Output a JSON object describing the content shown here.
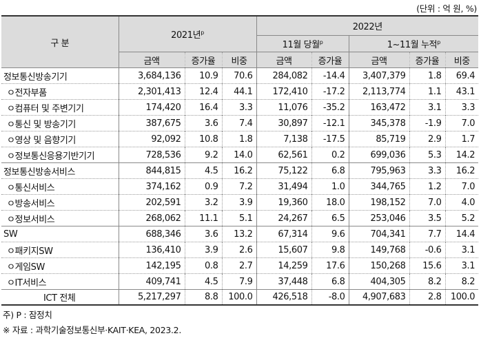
{
  "unit": "(단위 : 억 원, %)",
  "header": {
    "category": "구    분",
    "y2021": "2021년",
    "y2021_sup": "p",
    "y2022": "2022년",
    "nov": "11월 당월",
    "nov_sup": "p",
    "cum": "1~11월 누적",
    "cum_sup": "p",
    "amount": "금액",
    "growth": "증가율",
    "share": "비중"
  },
  "rows": [
    {
      "label": "정보통신방송기기",
      "v": [
        "3,684,136",
        "10.9",
        "70.6",
        "284,082",
        "-14.4",
        "3,407,379",
        "1.8",
        "69.4"
      ]
    },
    {
      "label": "ㅇ전자부품",
      "v": [
        "2,301,413",
        "12.4",
        "44.1",
        "172,410",
        "-17.2",
        "2,113,774",
        "1.1",
        "43.1"
      ]
    },
    {
      "label": "ㅇ컴퓨터 및 주변기기",
      "v": [
        "174,420",
        "16.4",
        "3.3",
        "11,076",
        "-35.2",
        "163,472",
        "3.1",
        "3.3"
      ]
    },
    {
      "label": "ㅇ통신 및 방송기기",
      "v": [
        "387,675",
        "3.6",
        "7.4",
        "30,897",
        "-12.1",
        "345,378",
        "-1.9",
        "7.0"
      ]
    },
    {
      "label": "ㅇ영상 및 음향기기",
      "v": [
        "92,092",
        "10.8",
        "1.8",
        "7,138",
        "-17.5",
        "85,719",
        "2.9",
        "1.7"
      ]
    },
    {
      "label": "ㅇ정보통신응용기반기기",
      "v": [
        "728,536",
        "9.2",
        "14.0",
        "62,561",
        "0.2",
        "699,036",
        "5.3",
        "14.2"
      ]
    },
    {
      "label": "정보통신방송서비스",
      "v": [
        "844,815",
        "4.5",
        "16.2",
        "75,122",
        "6.8",
        "795,963",
        "3.3",
        "16.2"
      ]
    },
    {
      "label": "ㅇ통신서비스",
      "v": [
        "374,162",
        "0.9",
        "7.2",
        "31,494",
        "1.0",
        "344,765",
        "1.2",
        "7.0"
      ]
    },
    {
      "label": "ㅇ방송서비스",
      "v": [
        "202,591",
        "3.2",
        "3.9",
        "19,360",
        "18.0",
        "198,152",
        "7.0",
        "4.0"
      ]
    },
    {
      "label": "ㅇ정보서비스",
      "v": [
        "268,062",
        "11.1",
        "5.1",
        "24,267",
        "6.5",
        "253,046",
        "3.5",
        "5.2"
      ]
    },
    {
      "label": "SW",
      "v": [
        "688,346",
        "3.6",
        "13.2",
        "67,314",
        "9.6",
        "704,341",
        "7.7",
        "14.4"
      ]
    },
    {
      "label": "ㅇ패키지SW",
      "v": [
        "136,410",
        "3.9",
        "2.6",
        "15,607",
        "9.8",
        "149,768",
        "-0.6",
        "3.1"
      ]
    },
    {
      "label": "ㅇ게임SW",
      "v": [
        "142,195",
        "0.8",
        "2.7",
        "14,259",
        "17.6",
        "150,268",
        "15.6",
        "3.1"
      ]
    },
    {
      "label": "ㅇIT서비스",
      "v": [
        "409,741",
        "4.5",
        "7.9",
        "37,448",
        "6.8",
        "404,305",
        "8.2",
        "8.2"
      ]
    },
    {
      "label": "ICT 전체",
      "v": [
        "5,217,297",
        "8.8",
        "100.0",
        "426,518",
        "-8.0",
        "4,907,683",
        "2.8",
        "100.0"
      ]
    }
  ],
  "notes": [
    "주) P : 잠정치",
    "※ 자료 : 과학기술정보통신부·KAIT·KEA, 2023.2."
  ]
}
